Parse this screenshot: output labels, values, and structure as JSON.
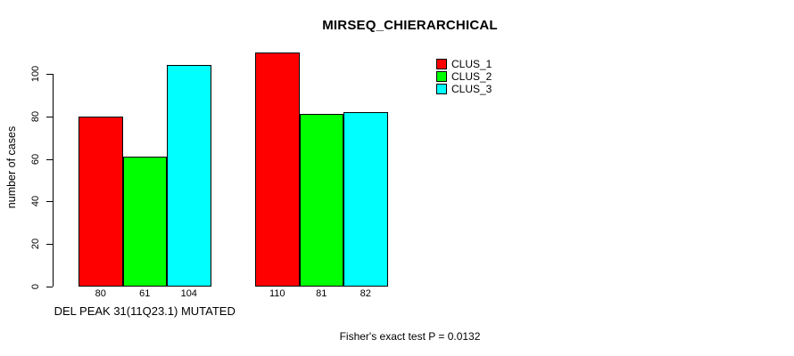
{
  "chart_data": {
    "type": "bar",
    "title": "MIRSEQ_CHIERARCHICAL",
    "ylabel": "number of cases",
    "xlabel": "DEL PEAK 31(11Q23.1) MUTATED",
    "groups": [
      "DEL PEAK 31(11Q23.1) MUTATED",
      ""
    ],
    "series": [
      {
        "name": "CLUS_1",
        "color": "#ff0000",
        "values": [
          80,
          110
        ]
      },
      {
        "name": "CLUS_2",
        "color": "#00ff00",
        "values": [
          61,
          81
        ]
      },
      {
        "name": "CLUS_3",
        "color": "#00ffff",
        "values": [
          104,
          82
        ]
      }
    ],
    "yticks": [
      0,
      20,
      40,
      60,
      80,
      100
    ],
    "ylim": [
      0,
      115
    ],
    "bar_value_labels": [
      [
        80,
        61,
        104
      ],
      [
        110,
        81,
        82
      ]
    ],
    "legend_entries": [
      "CLUS_1",
      "CLUS_2",
      "CLUS_3"
    ],
    "legend_position": "inside-top-right",
    "grid": false,
    "background": "#ffffff",
    "annotation": "Fisher's exact test P = 0.0132"
  }
}
